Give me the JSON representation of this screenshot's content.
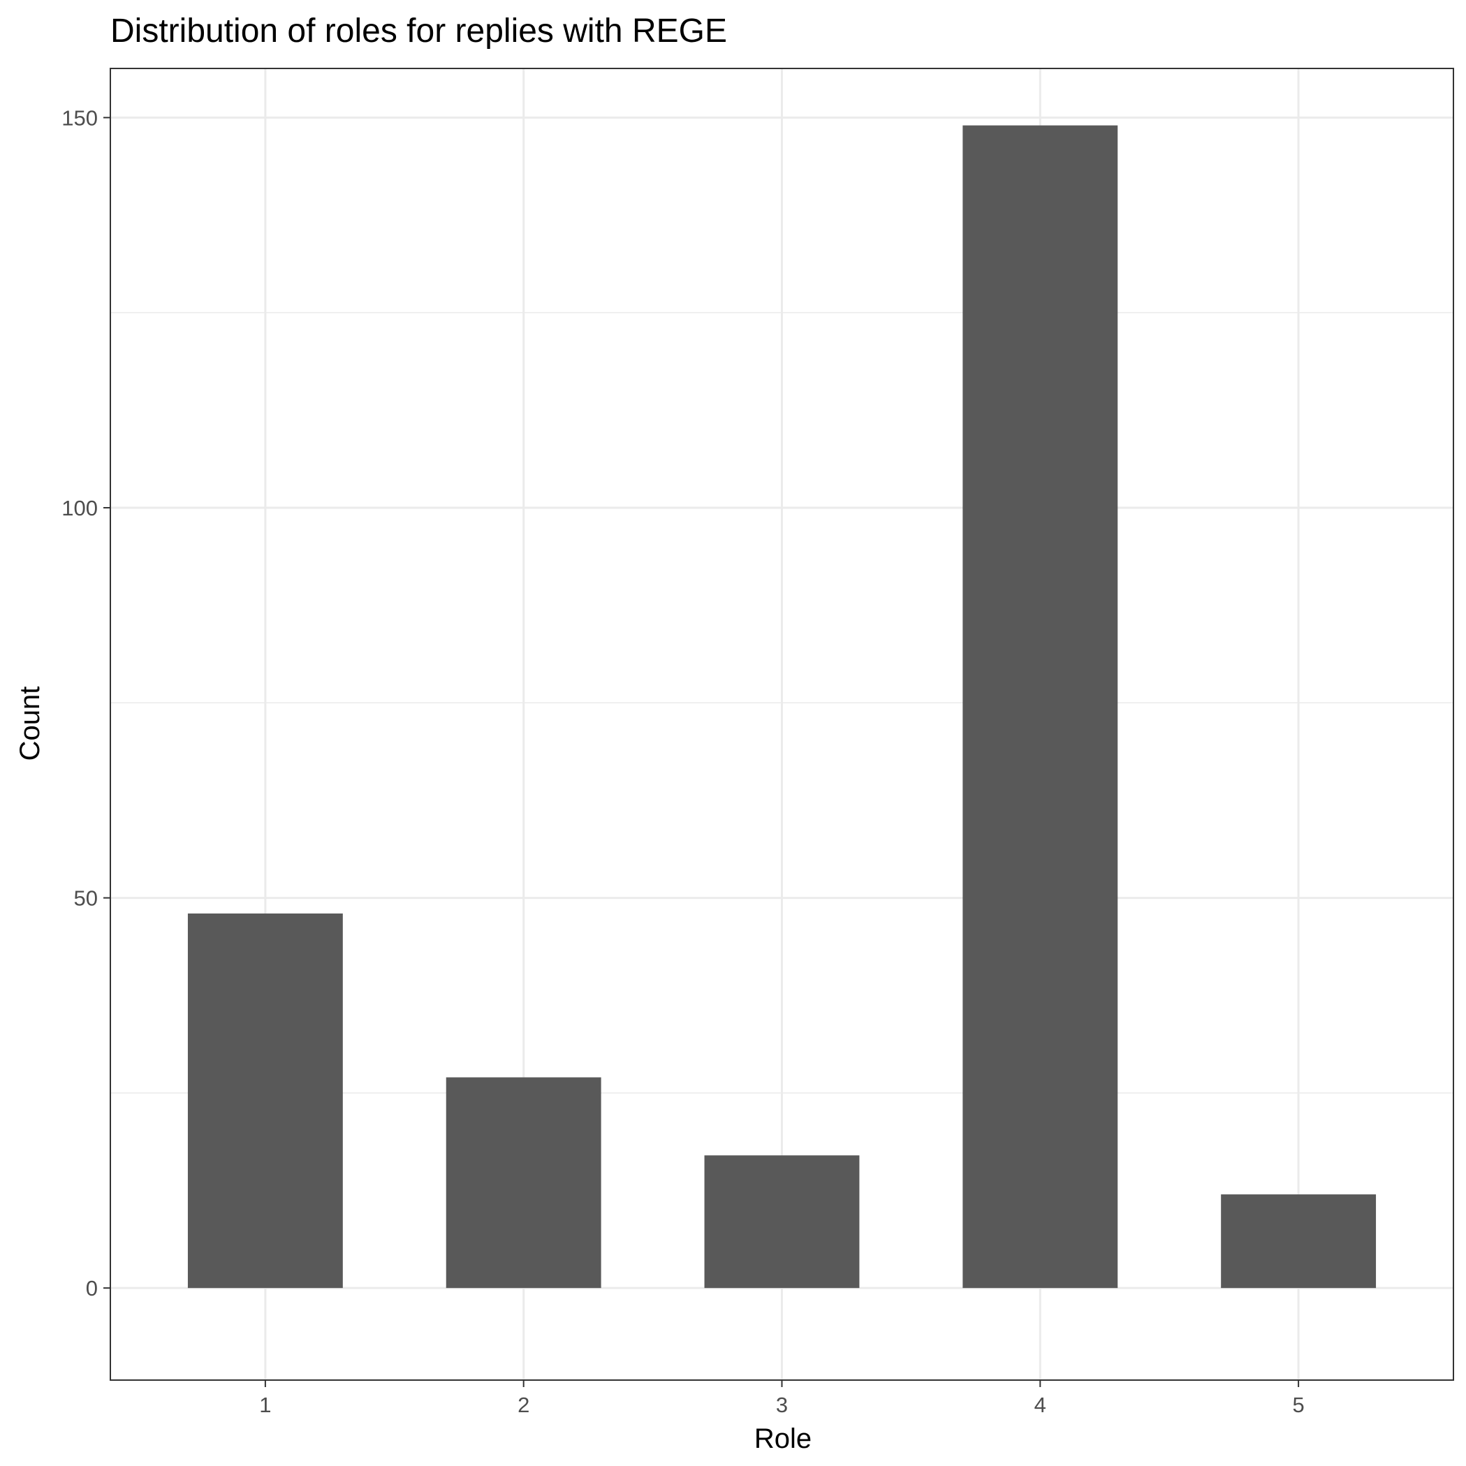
{
  "chart_data": {
    "type": "bar",
    "title": "Distribution of roles for replies with REGE",
    "xlabel": "Role",
    "ylabel": "Count",
    "categories": [
      "1",
      "2",
      "3",
      "4",
      "5"
    ],
    "values": [
      48,
      27,
      17,
      149,
      12
    ],
    "ylim": [
      -11.8,
      156.3
    ],
    "y_ticks": [
      0,
      50,
      100,
      150
    ],
    "y_minor_ticks": [
      25,
      75,
      125
    ],
    "grid": true,
    "bar_color": "#595959",
    "grid_color": "#ebebeb",
    "panel_border_color": "#333333",
    "legend": "none"
  }
}
